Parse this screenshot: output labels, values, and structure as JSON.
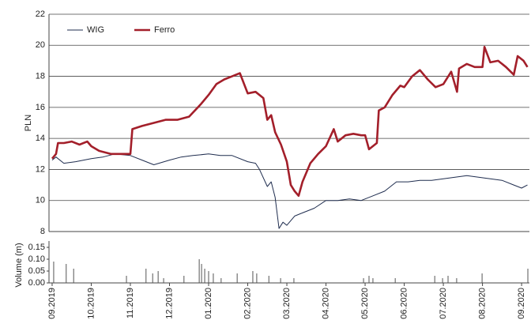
{
  "chart_data": [
    {
      "type": "line",
      "ylabel": "PLN",
      "ylim": [
        8,
        22
      ],
      "yticks": [
        8,
        10,
        12,
        14,
        16,
        18,
        20,
        22
      ],
      "xlim": [
        -0.08,
        12.2
      ],
      "grid": true,
      "legend": "upper left",
      "series": [
        {
          "name": "WIG",
          "color": "#1f2d4f",
          "x": [
            0,
            0.1,
            0.3,
            0.6,
            1.0,
            1.3,
            1.6,
            2.0,
            2.3,
            2.6,
            3.0,
            3.3,
            3.6,
            4.0,
            4.3,
            4.6,
            5.0,
            5.2,
            5.3,
            5.5,
            5.6,
            5.7,
            5.8,
            5.9,
            6.0,
            6.2,
            6.4,
            6.7,
            7.0,
            7.3,
            7.6,
            7.9,
            8.2,
            8.5,
            8.8,
            9.1,
            9.4,
            9.7,
            10.0,
            10.3,
            10.6,
            10.9,
            11.2,
            11.5,
            11.8,
            12.0,
            12.15
          ],
          "values": [
            12.6,
            12.8,
            12.4,
            12.5,
            12.7,
            12.8,
            13.0,
            12.9,
            12.6,
            12.3,
            12.6,
            12.8,
            12.9,
            13.0,
            12.9,
            12.9,
            12.5,
            12.4,
            12.0,
            10.9,
            11.2,
            10.2,
            8.2,
            8.6,
            8.4,
            9.0,
            9.2,
            9.5,
            10.0,
            10.0,
            10.1,
            10.0,
            10.3,
            10.6,
            11.2,
            11.2,
            11.3,
            11.3,
            11.4,
            11.5,
            11.6,
            11.5,
            11.4,
            11.3,
            11.0,
            10.8,
            11.0
          ]
        },
        {
          "name": "Ferro",
          "color": "#a31f2a",
          "x": [
            0,
            0.1,
            0.15,
            0.3,
            0.5,
            0.7,
            0.9,
            1.0,
            1.2,
            1.5,
            2.0,
            2.05,
            2.3,
            2.6,
            2.9,
            3.2,
            3.5,
            3.8,
            4.0,
            4.2,
            4.4,
            4.6,
            4.8,
            5.0,
            5.2,
            5.4,
            5.5,
            5.6,
            5.7,
            5.85,
            6.0,
            6.1,
            6.2,
            6.3,
            6.4,
            6.6,
            6.8,
            7.0,
            7.2,
            7.3,
            7.5,
            7.7,
            7.9,
            8.0,
            8.1,
            8.3,
            8.35,
            8.5,
            8.7,
            8.9,
            9.0,
            9.2,
            9.4,
            9.6,
            9.8,
            10.0,
            10.2,
            10.35,
            10.4,
            10.6,
            10.8,
            11.0,
            11.05,
            11.2,
            11.4,
            11.6,
            11.8,
            11.9,
            12.05,
            12.15
          ],
          "values": [
            12.7,
            13.0,
            13.7,
            13.7,
            13.8,
            13.6,
            13.8,
            13.5,
            13.2,
            13.0,
            13.0,
            14.6,
            14.8,
            15.0,
            15.2,
            15.2,
            15.4,
            16.2,
            16.8,
            17.5,
            17.8,
            18.0,
            18.2,
            16.9,
            17.0,
            16.6,
            15.2,
            15.5,
            14.4,
            13.6,
            12.5,
            11.0,
            10.6,
            10.3,
            11.2,
            12.4,
            13.0,
            13.5,
            14.6,
            13.8,
            14.2,
            14.3,
            14.2,
            14.2,
            13.3,
            13.7,
            15.8,
            16.0,
            16.8,
            17.4,
            17.3,
            18.0,
            18.4,
            17.8,
            17.3,
            17.5,
            18.3,
            17.0,
            18.5,
            18.8,
            18.6,
            18.6,
            19.9,
            18.9,
            19.0,
            18.6,
            18.1,
            19.3,
            19.0,
            18.6
          ]
        }
      ]
    },
    {
      "type": "bar",
      "ylabel": "Volume (m)",
      "color": "#555555",
      "ylim": [
        0,
        0.15
      ],
      "yticks": [
        {
          "value": 0,
          "label": "0.00"
        },
        0.05,
        {
          "value": 0.1,
          "label": "0.10"
        },
        0.15
      ],
      "xlim": [
        -0.08,
        12.2
      ],
      "xticks": [
        {
          "value": 0,
          "label": "09.2019"
        },
        {
          "value": 1,
          "label": "10.2019"
        },
        {
          "value": 2,
          "label": "11.2019"
        },
        {
          "value": 3,
          "label": "12.2019"
        },
        {
          "value": 4,
          "label": "01.2020"
        },
        {
          "value": 5,
          "label": "02.2020"
        },
        {
          "value": 6,
          "label": "03.2020"
        },
        {
          "value": 7,
          "label": "04.2020"
        },
        {
          "value": 8,
          "label": "05.2020"
        },
        {
          "value": 9,
          "label": "06.2020"
        },
        {
          "value": 10,
          "label": "07.2020"
        },
        {
          "value": 11,
          "label": "08.2020"
        },
        {
          "value": 12,
          "label": "09.2020"
        }
      ],
      "x": [
        0.04,
        0.36,
        0.55,
        1.9,
        2.4,
        2.57,
        2.71,
        2.85,
        3.37,
        3.76,
        3.82,
        3.9,
        4.0,
        4.12,
        4.32,
        4.73,
        5.13,
        5.23,
        5.54,
        5.84,
        6.18,
        7.96,
        8.1,
        8.2,
        8.77,
        9.78,
        9.98,
        10.12,
        10.34,
        10.99,
        12.16
      ],
      "values": [
        0.09,
        0.08,
        0.06,
        0.03,
        0.06,
        0.04,
        0.05,
        0.02,
        0.03,
        0.1,
        0.08,
        0.06,
        0.05,
        0.04,
        0.02,
        0.04,
        0.05,
        0.04,
        0.03,
        0.02,
        0.02,
        0.02,
        0.03,
        0.02,
        0.02,
        0.03,
        0.02,
        0.03,
        0.02,
        0.04,
        0.06
      ]
    }
  ]
}
